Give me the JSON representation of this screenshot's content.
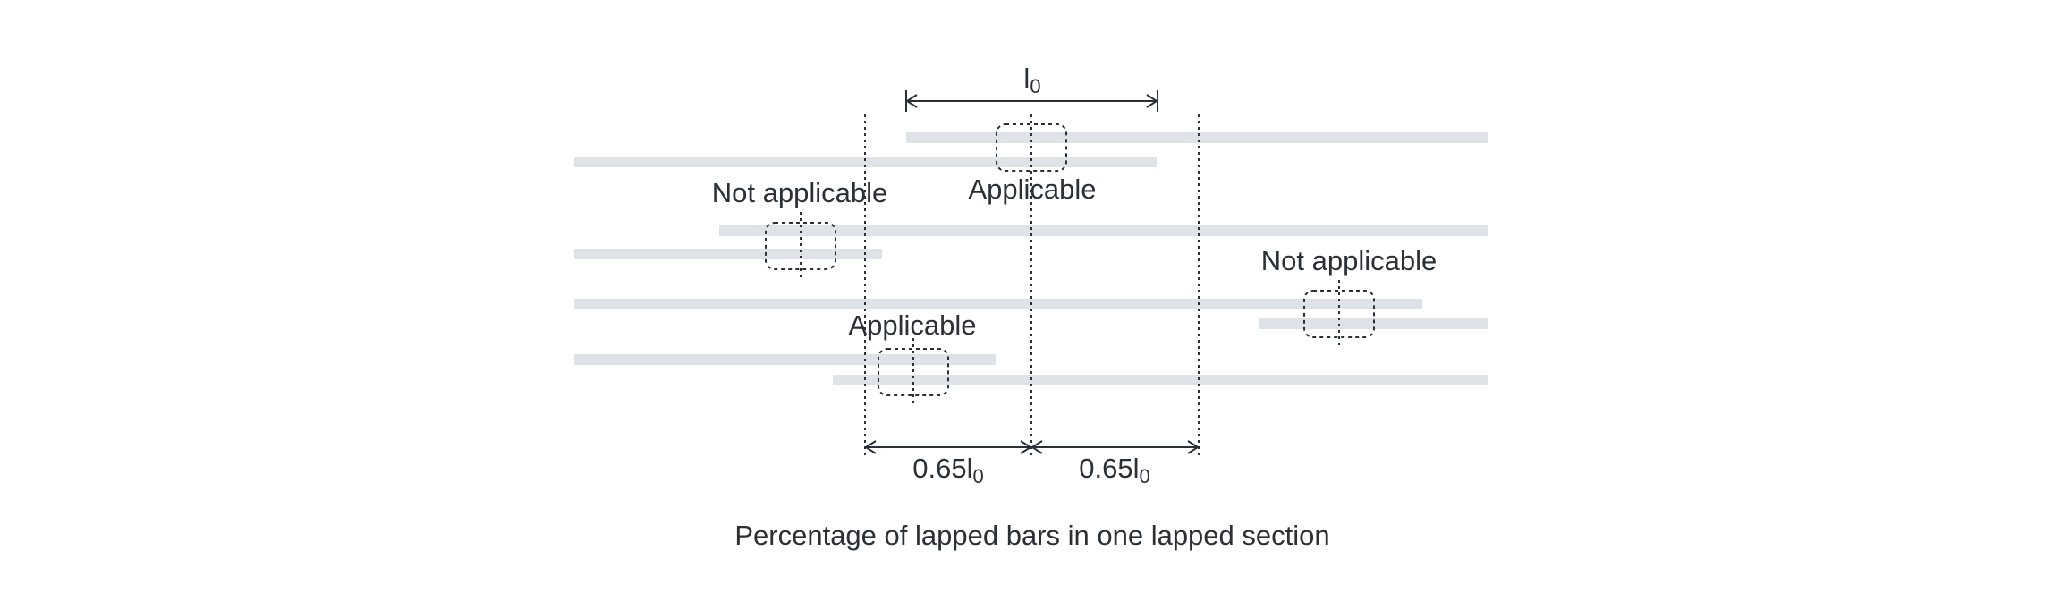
{
  "diagram": {
    "dimension_top": {
      "main": "l",
      "sub": "0"
    },
    "dimension_left": {
      "main": "0.65l",
      "sub": "0"
    },
    "dimension_right": {
      "main": "0.65l",
      "sub": "0"
    },
    "labels": {
      "top_applicable": "Applicable",
      "upper_left_not_applicable": "Not applicable",
      "right_not_applicable": "Not applicable",
      "lower_applicable": "Applicable"
    },
    "caption": "Percentage of lapped bars in one lapped section",
    "colors": {
      "bar": "#dfe3e8",
      "ink": "#2b2f36"
    }
  }
}
